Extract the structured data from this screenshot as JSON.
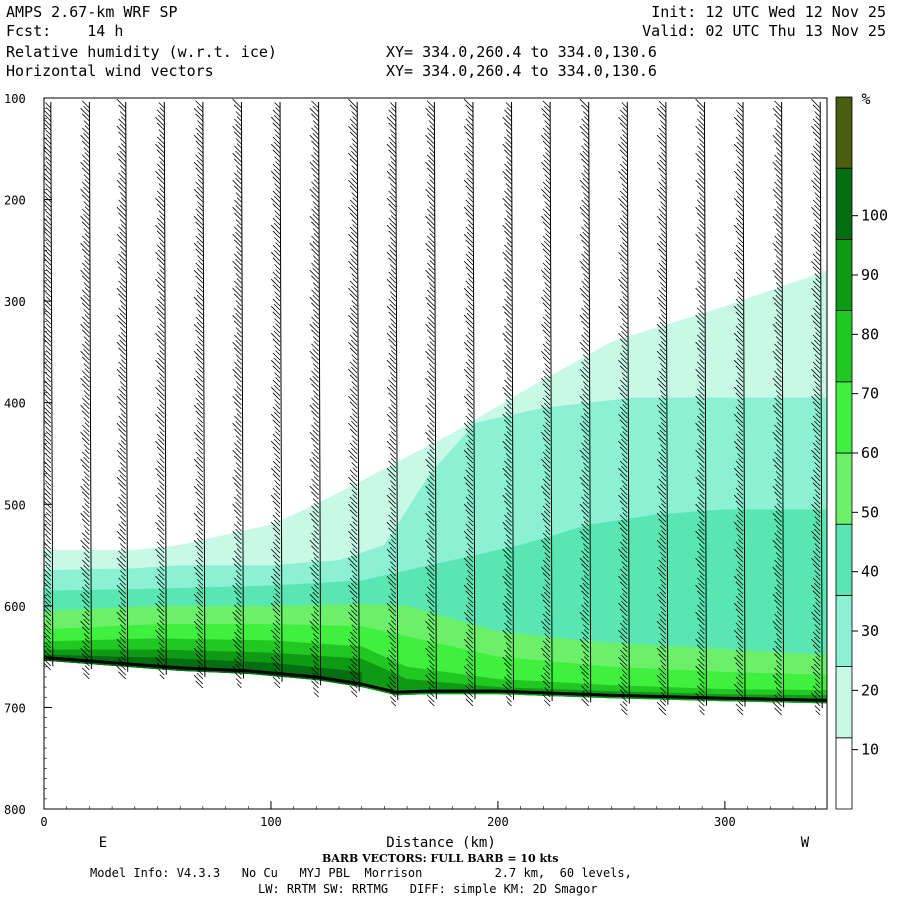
{
  "header": {
    "line1_left": "AMPS 2.67-km WRF SP",
    "line1_right": "Init: 12 UTC Wed 12 Nov 25",
    "line2_left": "Fcst:    14 h",
    "line2_right": "Valid: 02 UTC Thu 13 Nov 25",
    "line3_left": "Relative humidity (w.r.t. ice)",
    "line3_mid": "XY= 334.0,260.4 to 334.0,130.6",
    "line4_left": "Horizontal wind vectors",
    "line4_mid": "XY= 334.0,260.4 to 334.0,130.6"
  },
  "footer": {
    "barb_note": "BARB VECTORS: FULL BARB = 10 kts",
    "model_info": "Model Info: V4.3.3   No Cu   MYJ PBL  Morrison          2.7 km,  60 levels,",
    "physics_info": "LW: RRTM SW: RRTMG   DIFF: simple KM: 2D Smagor"
  },
  "chart_data": {
    "type": "heatmap",
    "title": "Relative humidity (w.r.t. ice)",
    "xlabel": "Distance (km)",
    "ylabel": "",
    "x_range": [
      0,
      345
    ],
    "y_range": [
      100,
      800
    ],
    "y_inverted": true,
    "x_ticks": [
      0,
      100,
      200,
      300
    ],
    "x_tick_labels": [
      "0",
      "100",
      "200",
      "300"
    ],
    "y_ticks": [
      100,
      200,
      300,
      400,
      500,
      600,
      700,
      800
    ],
    "y_tick_labels": [
      "100",
      "200",
      "300",
      "400",
      "500",
      "600",
      "700",
      "800"
    ],
    "left_end_label": "E",
    "right_end_label": "W",
    "colorbar": {
      "unit": "%",
      "tick_values": [
        10,
        20,
        30,
        40,
        50,
        60,
        70,
        80,
        90,
        100
      ],
      "tick_labels": [
        "10",
        "20",
        "30",
        "40",
        "50",
        "60",
        "70",
        "80",
        "90",
        "100"
      ],
      "bins": [
        {
          "from": 0,
          "to": 30,
          "color": "#ffffff"
        },
        {
          "from": 30,
          "to": 40,
          "color": "#c8f8e6"
        },
        {
          "from": 40,
          "to": 50,
          "color": "#8cf0d2"
        },
        {
          "from": 50,
          "to": 60,
          "color": "#5ae6b4"
        },
        {
          "from": 60,
          "to": 70,
          "color": "#6cf06a"
        },
        {
          "from": 70,
          "to": 80,
          "color": "#3ff03f"
        },
        {
          "from": 80,
          "to": 90,
          "color": "#22c822"
        },
        {
          "from": 90,
          "to": 100,
          "color": "#0f9a16"
        },
        {
          "from": 100,
          "to": 110,
          "color": "#046e10"
        },
        {
          "from": 110,
          "to": 120,
          "color": "#4a5e12"
        }
      ]
    },
    "terrain_pressure": [
      {
        "x": 0,
        "p": 651
      },
      {
        "x": 30,
        "p": 656
      },
      {
        "x": 60,
        "p": 661
      },
      {
        "x": 90,
        "p": 664
      },
      {
        "x": 120,
        "p": 670
      },
      {
        "x": 140,
        "p": 677
      },
      {
        "x": 155,
        "p": 685
      },
      {
        "x": 170,
        "p": 684
      },
      {
        "x": 200,
        "p": 684
      },
      {
        "x": 250,
        "p": 688
      },
      {
        "x": 300,
        "p": 691
      },
      {
        "x": 345,
        "p": 693
      }
    ],
    "rh_bands": [
      {
        "rh": 30,
        "top": [
          [
            0,
            545
          ],
          [
            40,
            545
          ],
          [
            60,
            540
          ],
          [
            100,
            520
          ],
          [
            120,
            500
          ],
          [
            150,
            465
          ],
          [
            180,
            430
          ],
          [
            210,
            390
          ],
          [
            250,
            340
          ],
          [
            300,
            305
          ],
          [
            345,
            270
          ]
        ],
        "bottom": "terrain"
      },
      {
        "rh": 40,
        "top": [
          [
            0,
            565
          ],
          [
            40,
            563
          ],
          [
            60,
            560
          ],
          [
            100,
            560
          ],
          [
            130,
            555
          ],
          [
            150,
            540
          ],
          [
            170,
            470
          ],
          [
            190,
            420
          ],
          [
            220,
            405
          ],
          [
            260,
            395
          ],
          [
            300,
            395
          ],
          [
            345,
            395
          ]
        ],
        "bottom": "terrain"
      },
      {
        "rh": 50,
        "top": [
          [
            0,
            585
          ],
          [
            50,
            583
          ],
          [
            100,
            580
          ],
          [
            140,
            575
          ],
          [
            160,
            565
          ],
          [
            180,
            555
          ],
          [
            210,
            540
          ],
          [
            240,
            520
          ],
          [
            270,
            510
          ],
          [
            300,
            505
          ],
          [
            345,
            505
          ]
        ],
        "bottom": "terrain"
      },
      {
        "rh": 60,
        "top": [
          [
            0,
            605
          ],
          [
            50,
            600
          ],
          [
            100,
            600
          ],
          [
            140,
            598
          ],
          [
            160,
            600
          ],
          [
            200,
            625
          ],
          [
            240,
            635
          ],
          [
            280,
            640
          ],
          [
            320,
            645
          ],
          [
            345,
            648
          ]
        ],
        "bottom": "terrain"
      },
      {
        "rh": 70,
        "top": [
          [
            0,
            623
          ],
          [
            50,
            618
          ],
          [
            100,
            618
          ],
          [
            140,
            620
          ],
          [
            160,
            630
          ],
          [
            200,
            650
          ],
          [
            250,
            660
          ],
          [
            300,
            665
          ],
          [
            345,
            668
          ]
        ],
        "bottom": "terrain"
      },
      {
        "rh": 80,
        "top": [
          [
            0,
            635
          ],
          [
            50,
            632
          ],
          [
            100,
            634
          ],
          [
            140,
            640
          ],
          [
            160,
            660
          ],
          [
            200,
            672
          ],
          [
            250,
            678
          ],
          [
            300,
            682
          ],
          [
            345,
            683
          ]
        ],
        "bottom": "terrain"
      },
      {
        "rh": 90,
        "top": [
          [
            0,
            643
          ],
          [
            50,
            643
          ],
          [
            100,
            646
          ],
          [
            140,
            652
          ],
          [
            160,
            672
          ],
          [
            200,
            680
          ],
          [
            250,
            684
          ],
          [
            300,
            687
          ],
          [
            345,
            688
          ]
        ],
        "bottom": "terrain"
      },
      {
        "rh": 100,
        "top": [
          [
            0,
            648
          ],
          [
            50,
            651
          ],
          [
            100,
            656
          ],
          [
            140,
            665
          ]
        ],
        "bottom": "terrain"
      }
    ],
    "wind_barb_columns_km": [
      3,
      20,
      36,
      53,
      70,
      87,
      104,
      121,
      138,
      155,
      172,
      189,
      206,
      223,
      240,
      257,
      274,
      291,
      308,
      325,
      342
    ]
  }
}
